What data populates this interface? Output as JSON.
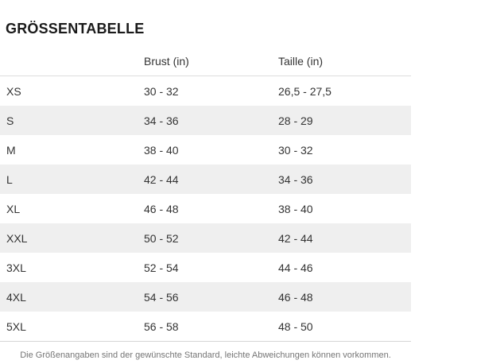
{
  "title": "GRÖSSENTABELLE",
  "table": {
    "columns": [
      {
        "label": ""
      },
      {
        "label": "Brust (in)"
      },
      {
        "label": "Taille (in)"
      }
    ],
    "rows": [
      {
        "size": "XS",
        "brust": "30 - 32",
        "taille": "26,5 - 27,5"
      },
      {
        "size": "S",
        "brust": "34 - 36",
        "taille": "28 - 29"
      },
      {
        "size": "M",
        "brust": "38 - 40",
        "taille": "30 - 32"
      },
      {
        "size": "L",
        "brust": "42 - 44",
        "taille": "34 - 36"
      },
      {
        "size": "XL",
        "brust": "46 - 48",
        "taille": "38 - 40"
      },
      {
        "size": "XXL",
        "brust": "50 - 52",
        "taille": "42 - 44"
      },
      {
        "size": "3XL",
        "brust": "52 - 54",
        "taille": "44 - 46"
      },
      {
        "size": "4XL",
        "brust": "54 - 56",
        "taille": "46 - 48"
      },
      {
        "size": "5XL",
        "brust": "56 - 58",
        "taille": "48 - 50"
      }
    ],
    "colors": {
      "stripe": "#efefef",
      "border": "#dcdcdc",
      "text": "#333333",
      "title_text": "#1a1a1a",
      "note_text": "#757575"
    }
  },
  "footer": {
    "note": "Die Größenangaben sind der gewünschte Standard, leichte Abweichungen können vorkommen."
  }
}
